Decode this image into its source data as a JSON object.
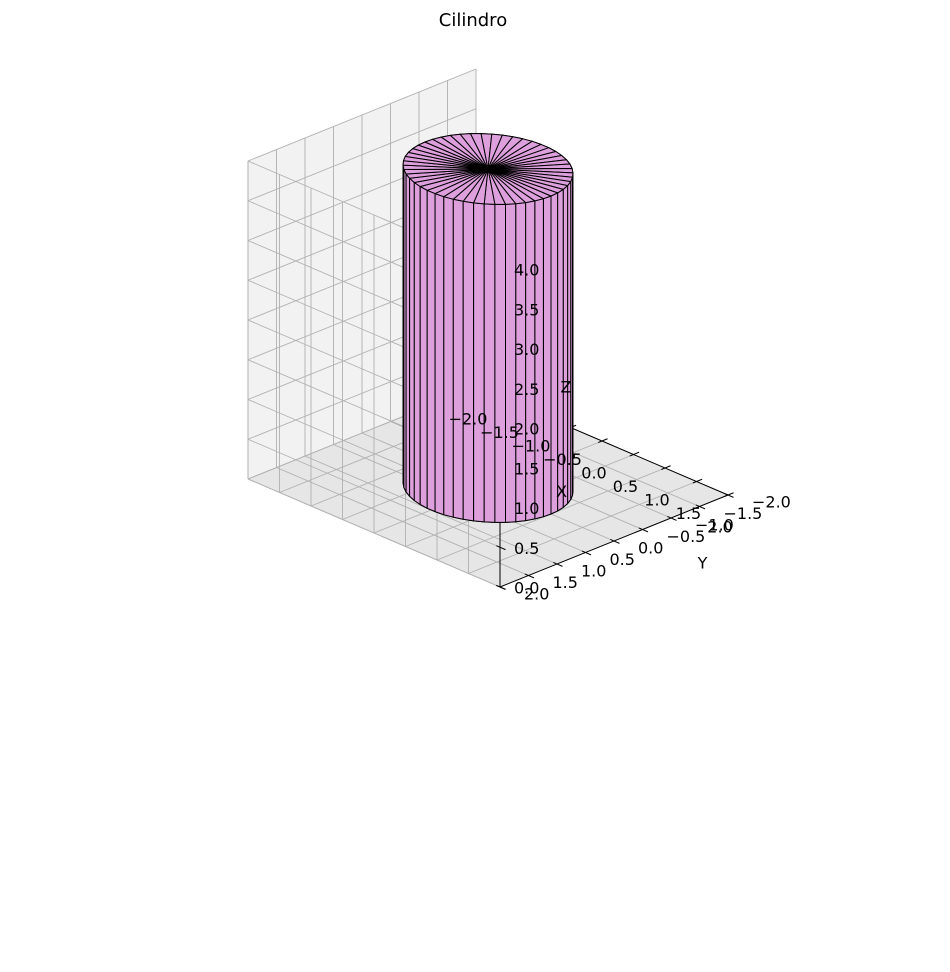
{
  "chart_data": {
    "type": "surface3d",
    "title": "Cilindro",
    "xlabel": "X",
    "ylabel": "Y",
    "zlabel": "Z",
    "xlim": [
      -2.0,
      2.0
    ],
    "ylim": [
      -2.0,
      2.0
    ],
    "zlim": [
      0.0,
      4.0
    ],
    "x_ticks": [
      "−2.0",
      "−1.5",
      "−1.0",
      "−0.5",
      "0.0",
      "0.5",
      "1.0",
      "1.5",
      "2.0"
    ],
    "y_ticks": [
      "−2.0",
      "−1.5",
      "−1.0",
      "−0.5",
      "0.0",
      "0.5",
      "1.0",
      "1.5",
      "2.0"
    ],
    "z_ticks": [
      "0.0",
      "0.5",
      "1.0",
      "1.5",
      "2.0",
      "2.5",
      "3.0",
      "3.5",
      "4.0"
    ],
    "grid": true,
    "surface": {
      "shape": "cylinder",
      "center": [
        0,
        0
      ],
      "radius": 1.0,
      "height": 4.0,
      "segments": 50,
      "color": "#dda0dd",
      "edgecolor": "#000000",
      "top_cap": true,
      "bottom_cap": true
    }
  },
  "colors": {
    "pane_back": "#ebebeb",
    "pane_side": "#f2f2f2",
    "pane_floor": "#e6e6e6",
    "grid": "#b0b0b0"
  }
}
